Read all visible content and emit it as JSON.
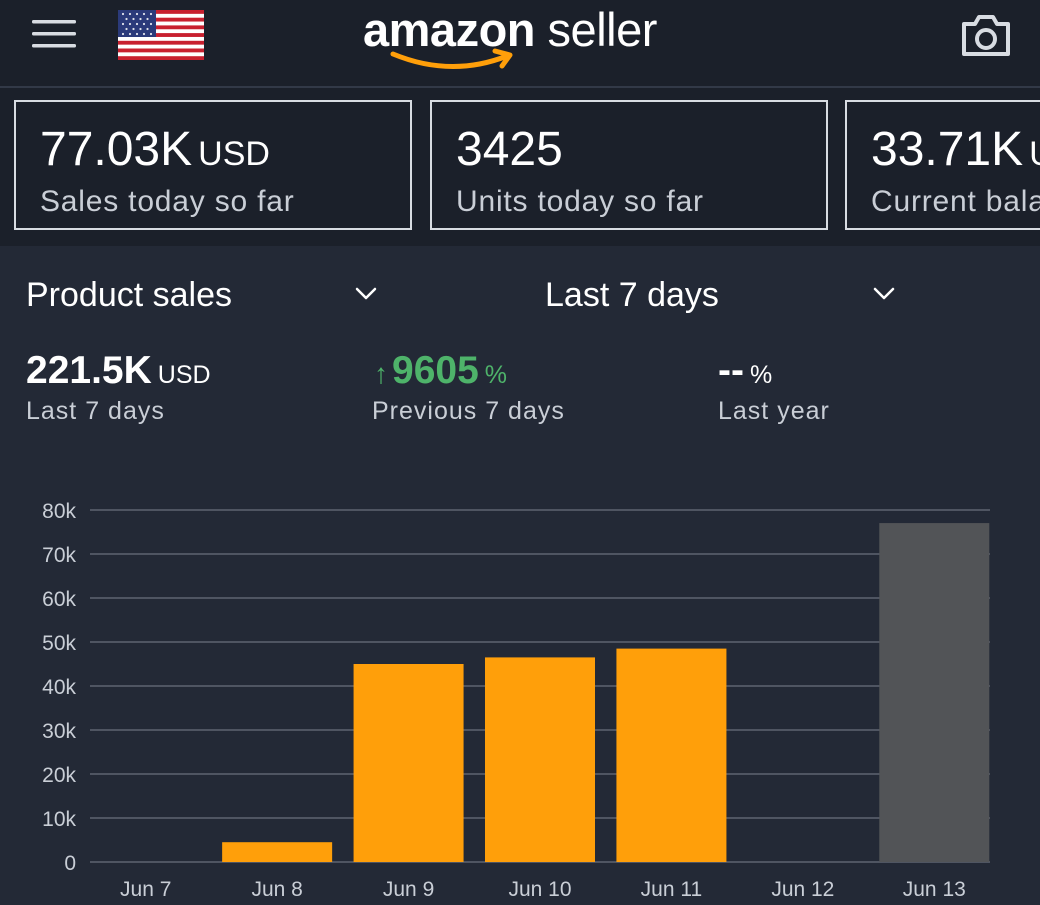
{
  "header": {
    "logo_bold": "amazon",
    "logo_light": " seller",
    "menu_icon": "hamburger-menu-icon",
    "flag_icon": "us-flag-icon",
    "camera_icon": "camera-icon"
  },
  "cards": [
    {
      "value": "77.03K",
      "unit": "USD",
      "label": "Sales today so far"
    },
    {
      "value": "3425",
      "unit": "",
      "label": "Units today so far"
    },
    {
      "value": "33.71K",
      "unit": "USD",
      "label": "Current balance"
    }
  ],
  "selectors": {
    "metric": "Product sales",
    "period": "Last 7 days"
  },
  "metrics": {
    "total": {
      "value": "221.5K",
      "unit": "USD",
      "label": "Last 7 days"
    },
    "previous": {
      "arrow": "↑",
      "value": "9605",
      "unit": "%",
      "label": "Previous 7 days"
    },
    "last_year": {
      "value": "--",
      "unit": "%",
      "label": "Last year"
    }
  },
  "colors": {
    "background": "#232936",
    "bar": "#ff9f0a",
    "bar_today": "#525457",
    "positive": "#4eb36a"
  },
  "chart_data": {
    "type": "bar",
    "categories": [
      "Jun 7",
      "Jun 8",
      "Jun 9",
      "Jun 10",
      "Jun 11",
      "Jun 12",
      "Jun 13"
    ],
    "values": [
      0,
      4500,
      45000,
      46500,
      48500,
      0,
      77030
    ],
    "highlight_last": true,
    "yticks": [
      "0",
      "10k",
      "20k",
      "30k",
      "40k",
      "50k",
      "60k",
      "70k",
      "80k"
    ],
    "ylim": [
      0,
      80000
    ],
    "grid": true
  }
}
